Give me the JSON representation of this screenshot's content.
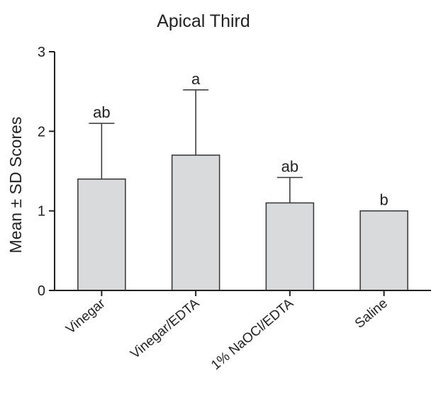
{
  "chart_data": {
    "type": "bar",
    "title": "Apical Third",
    "xlabel": "",
    "ylabel": "Mean ± SD Scores",
    "categories": [
      "Vinegar",
      "Vinegar/EDTA",
      "1% NaOCl/EDTA",
      "Saline"
    ],
    "series": [
      {
        "values": [
          1.4,
          1.7,
          1.1,
          1.0
        ],
        "error_plus": [
          0.7,
          0.82,
          0.32,
          0.0
        ],
        "labels": [
          "ab",
          "a",
          "ab",
          "b"
        ]
      }
    ],
    "ylim": [
      0,
      3
    ],
    "yticks": [
      "0",
      "1",
      "2",
      "3"
    ],
    "grid": false,
    "legend": "none",
    "colors": {
      "bar_fill": "#d9dadc",
      "bar_stroke": "#333333",
      "axis": "#222222",
      "text": "#222222"
    }
  }
}
